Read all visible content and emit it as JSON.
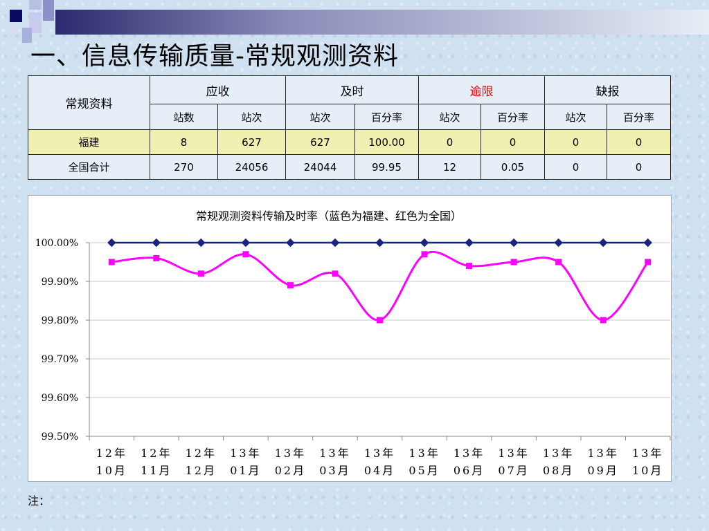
{
  "slide": {
    "title": "一、信息传输质量-常规观测资料",
    "note": "注："
  },
  "table": {
    "corner": "常规资料",
    "groups": [
      "应收",
      "及时",
      "逾限",
      "缺报"
    ],
    "subheaders": [
      "站数",
      "站次",
      "站次",
      "百分率",
      "站次",
      "百分率",
      "站次",
      "百分率"
    ],
    "rows": [
      {
        "name": "福建",
        "cells": [
          "8",
          "627",
          "627",
          "100.00",
          "0",
          "0",
          "0",
          "0"
        ]
      },
      {
        "name": "全国合计",
        "cells": [
          "270",
          "24056",
          "24044",
          "99.95",
          "12",
          "0.05",
          "0",
          "0"
        ]
      }
    ],
    "highlight_color": "#f0f0b0",
    "overdue_color": "#e00000"
  },
  "chart_data": {
    "type": "line",
    "title": "常规观测资料传输及时率（蓝色为福建、红色为全国）",
    "categories": [
      [
        "12年",
        "10月"
      ],
      [
        "12年",
        "11月"
      ],
      [
        "12年",
        "12月"
      ],
      [
        "13年",
        "01月"
      ],
      [
        "13年",
        "02月"
      ],
      [
        "13年",
        "03月"
      ],
      [
        "13年",
        "04月"
      ],
      [
        "13年",
        "05月"
      ],
      [
        "13年",
        "06月"
      ],
      [
        "13年",
        "07月"
      ],
      [
        "13年",
        "08月"
      ],
      [
        "13年",
        "09月"
      ],
      [
        "13年",
        "10月"
      ]
    ],
    "series": [
      {
        "color": "#1a237e",
        "marker": "diamond",
        "smooth": false,
        "values": [
          100.0,
          100.0,
          100.0,
          100.0,
          100.0,
          100.0,
          100.0,
          100.0,
          100.0,
          100.0,
          100.0,
          100.0,
          100.0
        ]
      },
      {
        "color": "#ff00ff",
        "marker": "square",
        "smooth": true,
        "values": [
          99.95,
          99.96,
          99.92,
          99.97,
          99.89,
          99.92,
          99.8,
          99.97,
          99.94,
          99.95,
          99.95,
          99.8,
          99.95
        ]
      }
    ],
    "ylim": [
      99.5,
      100.0
    ],
    "yticks": [
      {
        "v": 100.0,
        "label": "100.00%"
      },
      {
        "v": 99.9,
        "label": "99.90%"
      },
      {
        "v": 99.8,
        "label": "99.80%"
      },
      {
        "v": 99.7,
        "label": "99.70%"
      },
      {
        "v": 99.6,
        "label": "99.60%"
      },
      {
        "v": 99.5,
        "label": "99.50%"
      }
    ],
    "grid": true
  }
}
